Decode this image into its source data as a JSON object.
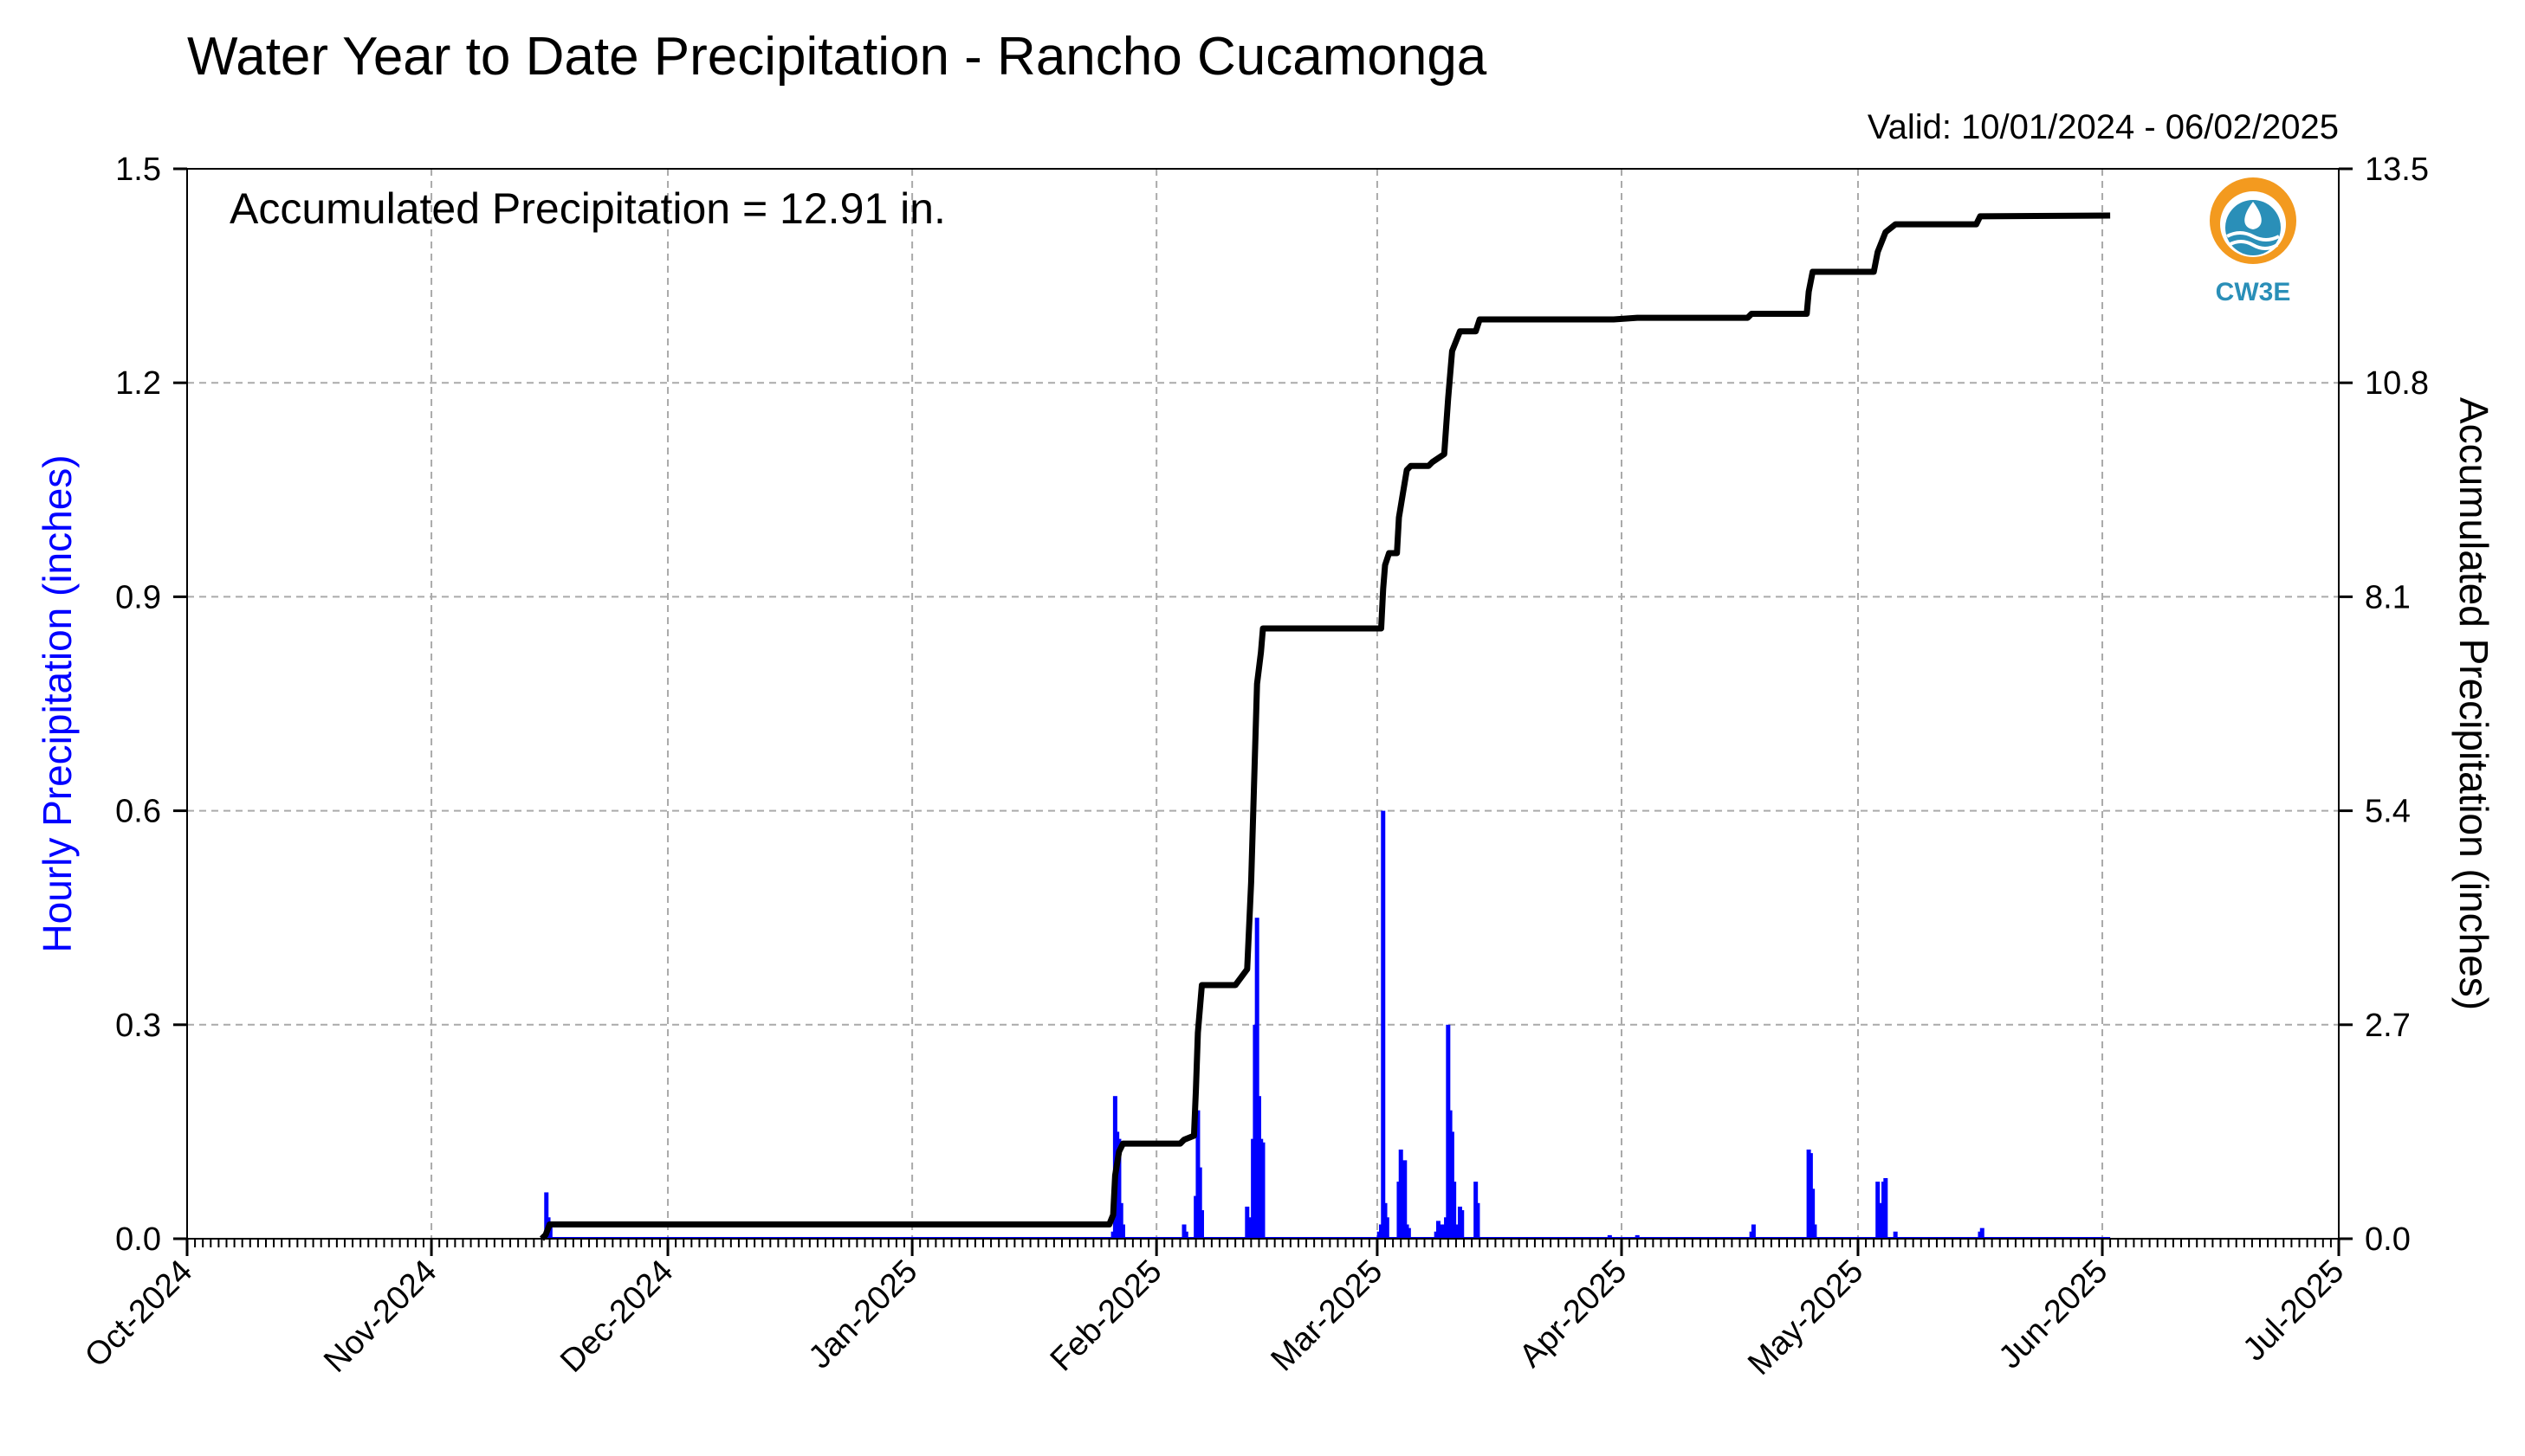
{
  "chart_data": {
    "type": "bar+line",
    "title": "Water Year to Date Precipitation - Rancho Cucamonga",
    "subtitle": "Valid: 10/01/2024 - 06/02/2025",
    "annotation": "Accumulated Precipitation = 12.91 in.",
    "logo_text": "CW3E",
    "y_left_label": "Hourly Precipitation (inches)",
    "y_right_label": "Accumulated Precipitation (inches)",
    "y_left_lim": [
      0,
      1.5
    ],
    "y_right_lim": [
      0,
      13.5
    ],
    "y_left_ticks": [
      "0.0",
      "0.3",
      "0.6",
      "0.9",
      "1.2",
      "1.5"
    ],
    "y_right_ticks": [
      "0.0",
      "2.7",
      "5.4",
      "8.1",
      "10.8",
      "13.5"
    ],
    "x_lim": [
      "2024-10-01",
      "2025-07-01"
    ],
    "x_ticks": [
      {
        "date": "2024-10-01",
        "label": "Oct-2024"
      },
      {
        "date": "2024-11-01",
        "label": "Nov-2024"
      },
      {
        "date": "2024-12-01",
        "label": "Dec-2024"
      },
      {
        "date": "2025-01-01",
        "label": "Jan-2025"
      },
      {
        "date": "2025-02-01",
        "label": "Feb-2025"
      },
      {
        "date": "2025-03-01",
        "label": "Mar-2025"
      },
      {
        "date": "2025-04-01",
        "label": "Apr-2025"
      },
      {
        "date": "2025-05-01",
        "label": "May-2025"
      },
      {
        "date": "2025-06-01",
        "label": "Jun-2025"
      },
      {
        "date": "2025-07-01",
        "label": "Jul-2025"
      }
    ],
    "grid": true,
    "colors": {
      "hourly": "#0000ff",
      "accumulated": "#000000",
      "grid": "#aaaaaa"
    },
    "series": [
      {
        "name": "Hourly Precipitation",
        "type": "bar",
        "axis": "left",
        "points": [
          [
            "2024-11-15 14:00",
            0.065
          ],
          [
            "2024-11-15 20:00",
            0.03
          ],
          [
            "2024-11-16 02:00",
            0.02
          ],
          [
            "2025-01-26 12:00",
            0.01
          ],
          [
            "2025-01-26 18:00",
            0.2
          ],
          [
            "2025-01-27 00:00",
            0.15
          ],
          [
            "2025-01-27 06:00",
            0.14
          ],
          [
            "2025-01-27 12:00",
            0.05
          ],
          [
            "2025-01-27 18:00",
            0.02
          ],
          [
            "2025-02-04 12:00",
            0.02
          ],
          [
            "2025-02-04 18:00",
            0.01
          ],
          [
            "2025-02-06 00:00",
            0.06
          ],
          [
            "2025-02-06 06:00",
            0.18
          ],
          [
            "2025-02-06 12:00",
            0.1
          ],
          [
            "2025-02-06 18:00",
            0.04
          ],
          [
            "2025-02-12 12:00",
            0.045
          ],
          [
            "2025-02-12 18:00",
            0.03
          ],
          [
            "2025-02-13 06:00",
            0.14
          ],
          [
            "2025-02-13 12:00",
            0.3
          ],
          [
            "2025-02-13 18:00",
            0.45
          ],
          [
            "2025-02-14 00:00",
            0.2
          ],
          [
            "2025-02-14 06:00",
            0.14
          ],
          [
            "2025-02-14 12:00",
            0.135
          ],
          [
            "2025-03-01 06:00",
            0.01
          ],
          [
            "2025-03-01 12:00",
            0.02
          ],
          [
            "2025-03-01 18:00",
            0.6
          ],
          [
            "2025-03-02 00:00",
            0.05
          ],
          [
            "2025-03-02 06:00",
            0.03
          ],
          [
            "2025-03-03 18:00",
            0.08
          ],
          [
            "2025-03-04 00:00",
            0.125
          ],
          [
            "2025-03-04 06:00",
            0.1
          ],
          [
            "2025-03-04 12:00",
            0.11
          ],
          [
            "2025-03-04 18:00",
            0.02
          ],
          [
            "2025-03-05 00:00",
            0.015
          ],
          [
            "2025-03-08 12:00",
            0.01
          ],
          [
            "2025-03-08 18:00",
            0.025
          ],
          [
            "2025-03-09 06:00",
            0.02
          ],
          [
            "2025-03-09 12:00",
            0.02
          ],
          [
            "2025-03-09 18:00",
            0.03
          ],
          [
            "2025-03-10 00:00",
            0.3
          ],
          [
            "2025-03-10 06:00",
            0.18
          ],
          [
            "2025-03-10 12:00",
            0.15
          ],
          [
            "2025-03-10 18:00",
            0.08
          ],
          [
            "2025-03-11 00:00",
            0.02
          ],
          [
            "2025-03-11 12:00",
            0.045
          ],
          [
            "2025-03-11 18:00",
            0.04
          ],
          [
            "2025-03-13 12:00",
            0.08
          ],
          [
            "2025-03-13 18:00",
            0.05
          ],
          [
            "2025-03-30 12:00",
            0.005
          ],
          [
            "2025-04-03 00:00",
            0.005
          ],
          [
            "2025-04-17 12:00",
            0.01
          ],
          [
            "2025-04-17 18:00",
            0.02
          ],
          [
            "2025-04-24 18:00",
            0.125
          ],
          [
            "2025-04-25 00:00",
            0.12
          ],
          [
            "2025-04-25 06:00",
            0.07
          ],
          [
            "2025-04-25 12:00",
            0.02
          ],
          [
            "2025-05-03 12:00",
            0.08
          ],
          [
            "2025-05-03 18:00",
            0.05
          ],
          [
            "2025-05-04 06:00",
            0.08
          ],
          [
            "2025-05-04 12:00",
            0.085
          ],
          [
            "2025-05-05 18:00",
            0.01
          ],
          [
            "2025-05-16 12:00",
            0.01
          ],
          [
            "2025-05-16 18:00",
            0.015
          ]
        ]
      },
      {
        "name": "Accumulated Precipitation",
        "type": "line",
        "axis": "right",
        "points": [
          [
            "2024-11-15 00:00",
            0.0
          ],
          [
            "2024-11-15 12:00",
            0.05
          ],
          [
            "2024-11-16 00:00",
            0.18
          ],
          [
            "2025-01-26 00:00",
            0.18
          ],
          [
            "2025-01-26 12:00",
            0.3
          ],
          [
            "2025-01-26 18:00",
            0.8
          ],
          [
            "2025-01-27 06:00",
            1.1
          ],
          [
            "2025-01-27 18:00",
            1.2
          ],
          [
            "2025-02-04 00:00",
            1.2
          ],
          [
            "2025-02-04 12:00",
            1.25
          ],
          [
            "2025-02-05 18:00",
            1.3
          ],
          [
            "2025-02-06 00:00",
            1.9
          ],
          [
            "2025-02-06 06:00",
            2.6
          ],
          [
            "2025-02-06 18:00",
            3.2
          ],
          [
            "2025-02-11 00:00",
            3.2
          ],
          [
            "2025-02-12 12:00",
            3.4
          ],
          [
            "2025-02-13 00:00",
            4.5
          ],
          [
            "2025-02-13 18:00",
            7.0
          ],
          [
            "2025-02-14 06:00",
            7.4
          ],
          [
            "2025-02-14 12:00",
            7.7
          ],
          [
            "2025-03-01 12:00",
            7.7
          ],
          [
            "2025-03-01 18:00",
            8.2
          ],
          [
            "2025-03-02 00:00",
            8.5
          ],
          [
            "2025-03-02 12:00",
            8.65
          ],
          [
            "2025-03-03 12:00",
            8.65
          ],
          [
            "2025-03-03 18:00",
            9.1
          ],
          [
            "2025-03-04 06:00",
            9.4
          ],
          [
            "2025-03-04 18:00",
            9.7
          ],
          [
            "2025-03-05 06:00",
            9.75
          ],
          [
            "2025-03-07 12:00",
            9.75
          ],
          [
            "2025-03-08 00:00",
            9.8
          ],
          [
            "2025-03-09 12:00",
            9.9
          ],
          [
            "2025-03-10 00:00",
            10.6
          ],
          [
            "2025-03-10 12:00",
            11.2
          ],
          [
            "2025-03-11 12:00",
            11.45
          ],
          [
            "2025-03-13 12:00",
            11.45
          ],
          [
            "2025-03-14 00:00",
            11.6
          ],
          [
            "2025-03-31 00:00",
            11.6
          ],
          [
            "2025-04-03 00:00",
            11.62
          ],
          [
            "2025-04-17 00:00",
            11.62
          ],
          [
            "2025-04-17 12:00",
            11.67
          ],
          [
            "2025-04-24 12:00",
            11.67
          ],
          [
            "2025-04-24 18:00",
            11.95
          ],
          [
            "2025-04-25 06:00",
            12.2
          ],
          [
            "2025-05-03 00:00",
            12.2
          ],
          [
            "2025-05-03 12:00",
            12.45
          ],
          [
            "2025-05-04 12:00",
            12.7
          ],
          [
            "2025-05-05 18:00",
            12.8
          ],
          [
            "2025-05-16 00:00",
            12.8
          ],
          [
            "2025-05-16 12:00",
            12.9
          ],
          [
            "2025-06-02 00:00",
            12.91
          ]
        ]
      }
    ]
  }
}
